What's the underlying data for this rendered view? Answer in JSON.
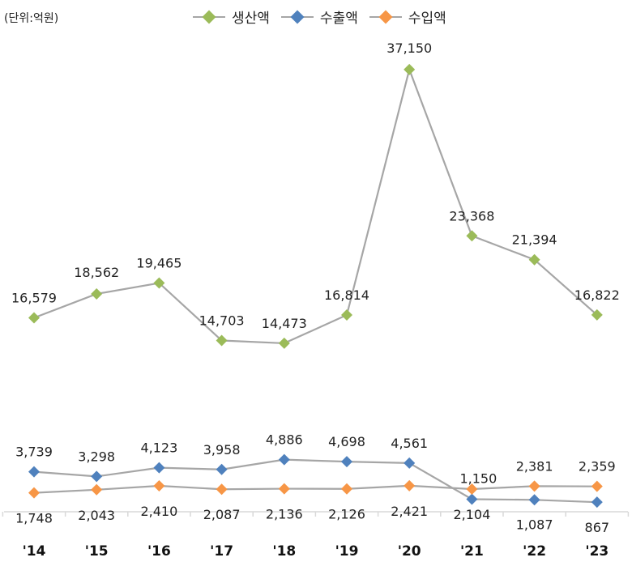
{
  "unit_label": "(단위:억원)",
  "chart_data": {
    "type": "line",
    "categories": [
      "'14",
      "'15",
      "'16",
      "'17",
      "'18",
      "'19",
      "'20",
      "'21",
      "'22",
      "'23"
    ],
    "series": [
      {
        "name": "생산액",
        "values": [
          16579,
          18562,
          19465,
          14703,
          14473,
          16814,
          37150,
          23368,
          21394,
          16822
        ],
        "labels": [
          "16,579",
          "18,562",
          "19,465",
          "14,703",
          "14,473",
          "16,814",
          "37,150",
          "23,368",
          "21,394",
          "16,822"
        ],
        "color": "#9bbb59"
      },
      {
        "name": "수출액",
        "values": [
          3739,
          3298,
          4123,
          3958,
          4886,
          4698,
          4561,
          1150,
          1087,
          867
        ],
        "labels": [
          "3,739",
          "3,298",
          "4,123",
          "3,958",
          "4,886",
          "4,698",
          "4,561",
          "1,150",
          "1,087",
          "867"
        ],
        "color": "#4f81bd"
      },
      {
        "name": "수입액",
        "values": [
          1748,
          2043,
          2410,
          2087,
          2136,
          2126,
          2421,
          2104,
          2381,
          2359
        ],
        "labels": [
          "1,748",
          "2,043",
          "2,410",
          "2,087",
          "2,136",
          "2,126",
          "2,421",
          "2,104",
          "2,381",
          "2,359"
        ],
        "color": "#f79646"
      }
    ],
    "line_color": "#a6a6a6",
    "grid": false,
    "legend_position": "top"
  }
}
